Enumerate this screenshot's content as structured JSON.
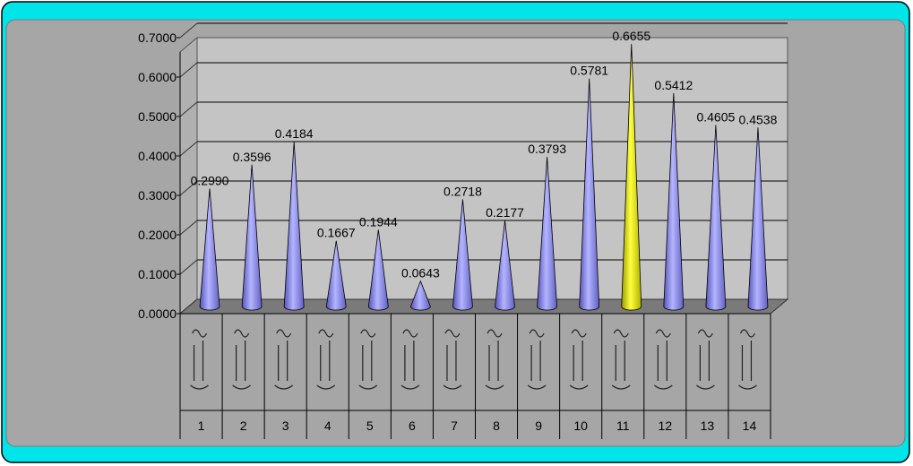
{
  "colors": {
    "border_cyan": "#00e5ea",
    "frame_bg": "#a6a6a6",
    "plot_bg": "#c4c4c4",
    "floor": "#7a7a7a",
    "cone": "#9999ee",
    "highlight_cone": "#f2f20a"
  },
  "chart_data": {
    "type": "bar",
    "style": "3d-cone",
    "categories": [
      "1",
      "2",
      "3",
      "4",
      "5",
      "6",
      "7",
      "8",
      "9",
      "10",
      "11",
      "12",
      "13",
      "14"
    ],
    "values": [
      0.299,
      0.3596,
      0.4184,
      0.1667,
      0.1944,
      0.0643,
      0.2718,
      0.2177,
      0.3793,
      0.5781,
      0.6655,
      0.5412,
      0.4605,
      0.4538
    ],
    "data_labels": [
      "0.2990",
      "0.3596",
      "0.4184",
      "0.1667",
      "0.1944",
      "0.0643",
      "0.2718",
      "0.2177",
      "0.3793",
      "0.5781",
      "0.6655",
      "0.5412",
      "0.4605",
      "0.4538"
    ],
    "highlight_index": 10,
    "ylim": [
      0,
      0.7
    ],
    "yticks": [
      "0.0000",
      "0.1000",
      "0.2000",
      "0.3000",
      "0.4000",
      "0.5000",
      "0.6000",
      "0.7000"
    ],
    "grid": true,
    "legend": "none",
    "title": "",
    "xlabel": "",
    "ylabel": ""
  }
}
